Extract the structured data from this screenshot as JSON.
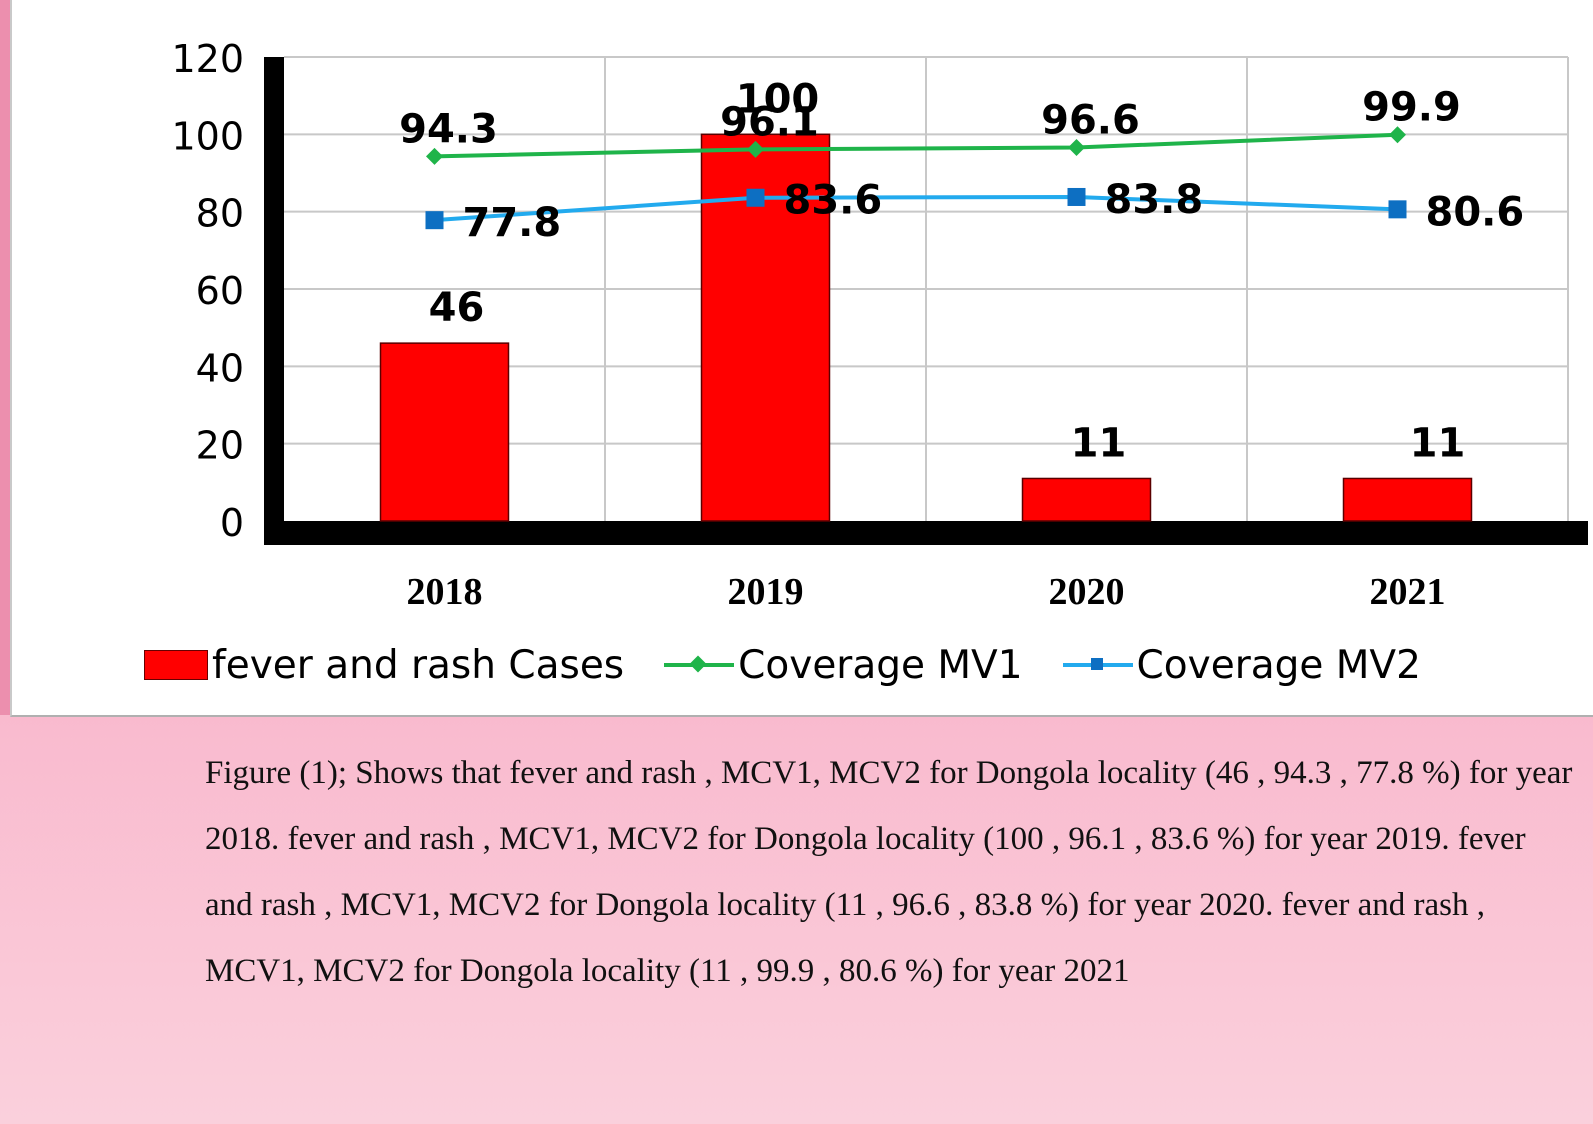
{
  "chart_data": {
    "type": "bar",
    "categories": [
      "2018",
      "2019",
      "2020",
      "2021"
    ],
    "ylim": [
      0,
      120
    ],
    "yticks": [
      0,
      20,
      40,
      60,
      80,
      100,
      120
    ],
    "grid": true,
    "legend_position": "bottom",
    "series": [
      {
        "name": "fever and rash Cases",
        "type": "bar",
        "color": "#ff0000",
        "values": [
          46,
          100,
          11,
          11
        ]
      },
      {
        "name": "Coverage MV1",
        "type": "line",
        "marker": "diamond",
        "color": "#1fb44a",
        "values": [
          94.3,
          96.1,
          96.6,
          99.9
        ]
      },
      {
        "name": "Coverage MV2",
        "type": "line",
        "marker": "square",
        "color": "#22aaee",
        "values": [
          77.8,
          83.6,
          83.8,
          80.6
        ]
      }
    ]
  },
  "caption": "Figure (1);  Shows that fever and rash , MCV1, MCV2 for Dongola locality (46 , 94.3 , 77.8 %) for year 2018. fever and rash , MCV1, MCV2 for Dongola locality (100 , 96.1 , 83.6 %) for year 2019. fever and rash , MCV1, MCV2 for Dongola locality (11 , 96.6 , 83.8 %) for year 2020. fever and rash , MCV1, MCV2 for Dongola locality (11 , 99.9 , 80.6 %) for year 2021"
}
